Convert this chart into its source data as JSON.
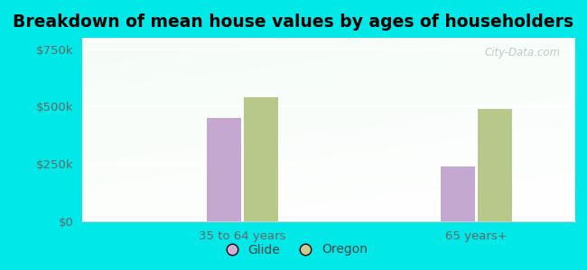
{
  "title": "Breakdown of mean house values by ages of householders",
  "categories": [
    "35 to 64 years",
    "65 years+"
  ],
  "series": {
    "Glide": [
      450000,
      240000
    ],
    "Oregon": [
      540000,
      490000
    ]
  },
  "bar_colors": {
    "Glide": "#c4a8d0",
    "Oregon": "#b8c88a"
  },
  "ylim": [
    0,
    800000
  ],
  "yticks": [
    0,
    250000,
    500000,
    750000
  ],
  "ytick_labels": [
    "$0",
    "$250k",
    "$500k",
    "$750k"
  ],
  "outer_bg": "#00e8e8",
  "bar_width": 0.28,
  "title_fontsize": 13.5,
  "tick_fontsize": 9.5,
  "legend_fontsize": 10,
  "watermark_text": "City-Data.com",
  "legend_labels": [
    "Glide",
    "Oregon"
  ],
  "legend_marker_colors": [
    "#d4b0d8",
    "#c8cc90"
  ]
}
